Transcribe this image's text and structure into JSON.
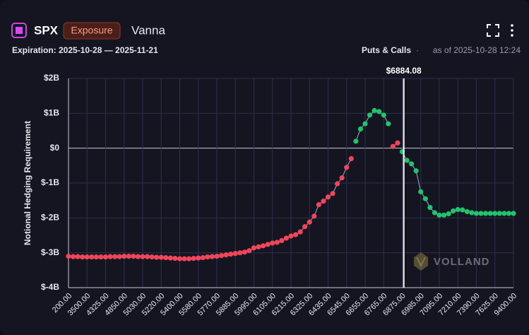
{
  "header": {
    "symbol": "SPX",
    "badge": "Exposure",
    "title": "Vanna",
    "expiration": "Expiration: 2025-10-28 — 2025-11-21",
    "mode": "Puts & Calls",
    "separator": "·",
    "as_of": "as of 2025-10-28 12:24"
  },
  "chart_data": {
    "type": "line",
    "y_label": "Notional Hedging Requirement",
    "watermark": "VOLLAND",
    "categories": [
      "200.00",
      null,
      null,
      null,
      "3500.00",
      null,
      null,
      null,
      "4325.00",
      null,
      null,
      null,
      "4850.00",
      null,
      null,
      null,
      "5030.00",
      null,
      null,
      null,
      "5220.00",
      null,
      null,
      null,
      "5400.00",
      null,
      null,
      null,
      "5580.00",
      null,
      null,
      null,
      "5770.00",
      null,
      null,
      null,
      "5885.00",
      null,
      null,
      null,
      "5995.00",
      null,
      null,
      null,
      "6105.00",
      null,
      null,
      null,
      "6215.00",
      null,
      null,
      null,
      "6325.00",
      null,
      null,
      null,
      "6435.00",
      null,
      null,
      null,
      "6545.00",
      null,
      null,
      null,
      "6655.00",
      null,
      null,
      null,
      "6765.00",
      null,
      null,
      null,
      "6875.00",
      null,
      null,
      null,
      "6985.00",
      null,
      null,
      null,
      "7095.00",
      null,
      null,
      null,
      "7210.00",
      null,
      null,
      null,
      "7390.00",
      null,
      null,
      null,
      "7625.00",
      null,
      null,
      null,
      "9400.00"
    ],
    "series": [
      {
        "color": "#f0465a",
        "values": [
          -3.1,
          -3.11,
          -3.11,
          -3.12,
          -3.12,
          -3.12,
          -3.12,
          -3.12,
          -3.12,
          -3.11,
          -3.11,
          -3.11,
          -3.1,
          -3.1,
          -3.1,
          -3.11,
          -3.11,
          -3.11,
          -3.12,
          -3.13,
          -3.13,
          -3.14,
          -3.15,
          -3.16,
          -3.17,
          -3.17,
          -3.17,
          -3.16,
          -3.15,
          -3.14,
          -3.12,
          -3.11,
          -3.1,
          -3.08,
          -3.06,
          -3.04,
          -3.02,
          -3.0,
          -2.98,
          -2.94,
          -2.86,
          -2.83,
          -2.8,
          -2.76,
          -2.72,
          -2.7,
          -2.65,
          -2.58,
          -2.52,
          -2.48,
          -2.4,
          -2.25,
          -2.12,
          -1.95,
          -1.62,
          -1.52,
          -1.4,
          -1.3,
          -1.02,
          -0.85,
          -0.55,
          -0.3,
          null,
          null,
          null,
          null,
          null,
          null,
          null,
          null,
          0.05,
          0.15,
          null,
          null,
          null,
          null,
          null,
          null,
          null,
          null,
          null,
          null,
          null,
          null,
          null,
          null,
          null,
          null,
          null,
          null,
          null,
          null,
          null,
          null,
          null,
          null,
          null
        ]
      },
      {
        "color": "#22c36b",
        "values": [
          null,
          null,
          null,
          null,
          null,
          null,
          null,
          null,
          null,
          null,
          null,
          null,
          null,
          null,
          null,
          null,
          null,
          null,
          null,
          null,
          null,
          null,
          null,
          null,
          null,
          null,
          null,
          null,
          null,
          null,
          null,
          null,
          null,
          null,
          null,
          null,
          null,
          null,
          null,
          null,
          null,
          null,
          null,
          null,
          null,
          null,
          null,
          null,
          null,
          null,
          null,
          null,
          null,
          null,
          null,
          null,
          null,
          null,
          null,
          null,
          null,
          null,
          0.2,
          0.55,
          0.7,
          0.95,
          1.08,
          1.05,
          0.95,
          0.7,
          null,
          null,
          -0.1,
          -0.35,
          -0.45,
          -0.65,
          -1.25,
          -1.45,
          -1.7,
          -1.85,
          -1.92,
          -1.92,
          -1.88,
          -1.8,
          -1.76,
          -1.77,
          -1.82,
          -1.85,
          -1.87,
          -1.87,
          -1.87,
          -1.87,
          -1.87,
          -1.87,
          -1.87,
          -1.87,
          -1.87
        ]
      }
    ],
    "line_color": "#8e93b8",
    "spot": {
      "value": 6884.08,
      "label": "$6884.08"
    },
    "ylim": [
      -4,
      2
    ],
    "yticks": [
      {
        "value": -4,
        "label": "$-4B"
      },
      {
        "value": -3,
        "label": "$-3B"
      },
      {
        "value": -2,
        "label": "$-2B"
      },
      {
        "value": -1,
        "label": "$-1B"
      },
      {
        "value": 0,
        "label": "$0"
      },
      {
        "value": 1,
        "label": "$1B"
      },
      {
        "value": 2,
        "label": "$2B"
      }
    ],
    "grid": true
  }
}
